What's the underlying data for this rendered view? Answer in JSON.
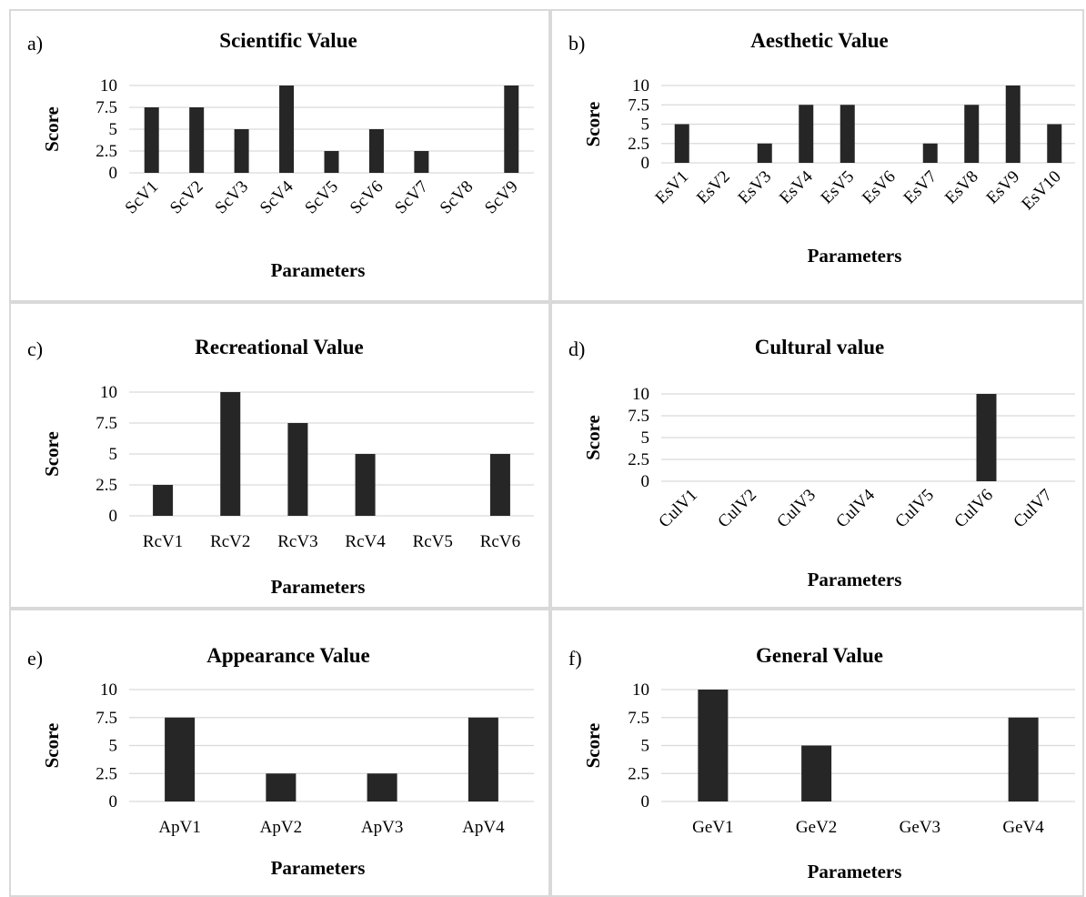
{
  "chart_data": [
    {
      "panel_label": "a)",
      "type": "bar",
      "title": "Scientific Value",
      "xlabel": "Parameters",
      "ylabel": "Score",
      "categories": [
        "ScV1",
        "ScV2",
        "ScV3",
        "ScV4",
        "ScV5",
        "ScV6",
        "ScV7",
        "ScV8",
        "ScV9"
      ],
      "values": [
        7.5,
        7.5,
        5,
        10,
        2.5,
        5,
        2.5,
        0,
        10
      ],
      "yticks": [
        "0",
        "2.5",
        "5",
        "7.5",
        "10"
      ],
      "ylim": [
        0,
        10
      ],
      "grid": true,
      "x_tick_rotation": "diagonal",
      "bar_color": "#262626"
    },
    {
      "panel_label": "b)",
      "type": "bar",
      "title": "Aesthetic Value",
      "xlabel": "Parameters",
      "ylabel": "Score",
      "categories": [
        "EsV1",
        "EsV2",
        "EsV3",
        "EsV4",
        "EsV5",
        "EsV6",
        "EsV7",
        "EsV8",
        "EsV9",
        "EsV10"
      ],
      "values": [
        5,
        0,
        2.5,
        7.5,
        7.5,
        0,
        2.5,
        7.5,
        10,
        5
      ],
      "yticks": [
        "0",
        "2.5",
        "5",
        "7.5",
        "10"
      ],
      "ylim": [
        0,
        10
      ],
      "grid": true,
      "x_tick_rotation": "diagonal",
      "bar_color": "#262626"
    },
    {
      "panel_label": "c)",
      "type": "bar",
      "title": "Recreational Value",
      "xlabel": "Parameters",
      "ylabel": "Score",
      "categories": [
        "RcV1",
        "RcV2",
        "RcV3",
        "RcV4",
        "RcV5",
        "RcV6"
      ],
      "values": [
        2.5,
        10,
        7.5,
        5,
        0,
        5
      ],
      "yticks": [
        "0",
        "2.5",
        "5",
        "7.5",
        "10"
      ],
      "ylim": [
        0,
        10
      ],
      "grid": true,
      "x_tick_rotation": "horizontal",
      "bar_color": "#262626"
    },
    {
      "panel_label": "d)",
      "type": "bar",
      "title": "Cultural value",
      "xlabel": "Parameters",
      "ylabel": "Score",
      "categories": [
        "CulV1",
        "CulV2",
        "CulV3",
        "CulV4",
        "CulV5",
        "CulV6",
        "CulV7"
      ],
      "values": [
        0,
        0,
        0,
        0,
        0,
        10,
        0
      ],
      "yticks": [
        "0",
        "2.5",
        "5",
        "7.5",
        "10"
      ],
      "ylim": [
        0,
        10
      ],
      "grid": true,
      "x_tick_rotation": "diagonal",
      "bar_color": "#262626"
    },
    {
      "panel_label": "e)",
      "type": "bar",
      "title": "Appearance Value",
      "xlabel": "Parameters",
      "ylabel": "Score",
      "categories": [
        "ApV1",
        "ApV2",
        "ApV3",
        "ApV4"
      ],
      "values": [
        7.5,
        2.5,
        2.5,
        7.5
      ],
      "yticks": [
        "0",
        "2.5",
        "5",
        "7.5",
        "10"
      ],
      "ylim": [
        0,
        10
      ],
      "grid": true,
      "x_tick_rotation": "horizontal",
      "bar_color": "#262626"
    },
    {
      "panel_label": "f)",
      "type": "bar",
      "title": "General Value",
      "xlabel": "Parameters",
      "ylabel": "Score",
      "categories": [
        "GeV1",
        "GeV2",
        "GeV3",
        "GeV4"
      ],
      "values": [
        10,
        5,
        0,
        7.5
      ],
      "yticks": [
        "0",
        "2.5",
        "5",
        "7.5",
        "10"
      ],
      "ylim": [
        0,
        10
      ],
      "grid": true,
      "x_tick_rotation": "horizontal",
      "bar_color": "#262626"
    }
  ]
}
